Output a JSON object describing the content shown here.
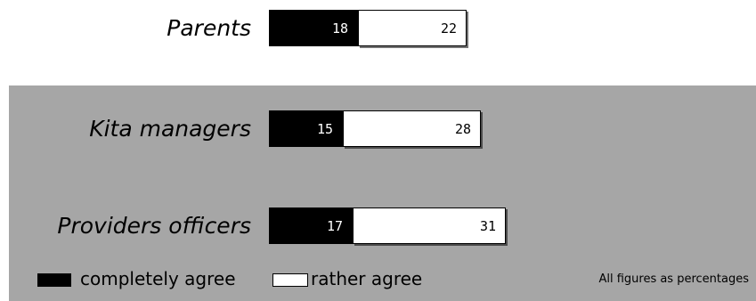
{
  "chart_data": {
    "type": "bar",
    "orientation": "horizontal",
    "stacked": true,
    "categories": [
      "Parents",
      "Kita managers",
      "Providers officers"
    ],
    "series": [
      {
        "name": "completely agree",
        "values": [
          18,
          15,
          17
        ],
        "color": "#000000"
      },
      {
        "name": "rather agree",
        "values": [
          22,
          28,
          31
        ],
        "color": "#ffffff"
      }
    ],
    "note": "All figures as percentages",
    "legend_position": "bottom-left",
    "grid": false,
    "highlight_background": "#a6a6a6"
  }
}
